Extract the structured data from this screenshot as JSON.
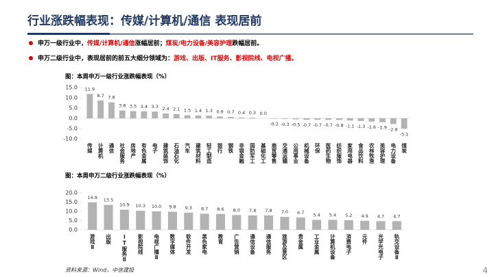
{
  "header": {
    "title": "行业涨跌幅表现：传媒/计算机/通信 表现居前"
  },
  "bullets": [
    [
      {
        "text": "申万一级行业中，",
        "color": "#000000"
      },
      {
        "text": "传媒/计算机/通信",
        "color": "#e00000"
      },
      {
        "text": "涨幅居前；",
        "color": "#000000"
      },
      {
        "text": "煤炭/电力设备/美容护理",
        "color": "#e00000"
      },
      {
        "text": "跌幅居前。",
        "color": "#000000"
      }
    ],
    [
      {
        "text": "申万二级行业中，表现居前的前五大细分领域为：",
        "color": "#000000"
      },
      {
        "text": "游戏、出版、IT服务、影视院线、电视广播。",
        "color": "#e00000"
      }
    ]
  ],
  "chart_data": [
    {
      "type": "bar",
      "title": "图：本周申万一级行业涨跌幅表现（%）",
      "color": "#b3b3b3",
      "categories": [
        "传媒",
        "计算机",
        "通信",
        "社会服务",
        "房地产",
        "有色金属",
        "电子",
        "建筑装饰",
        "石油石化",
        "汽车",
        "建筑材料",
        "轻工制造",
        "银行",
        "钢铁",
        "非银金融",
        "国防军工",
        "基础化工",
        "商贸零售",
        "交通运输",
        "公用事业",
        "机械设备",
        "环保",
        "医药生物",
        "纺织服饰",
        "家用电器",
        "食品饮料",
        "农林牧渔",
        "美容护理",
        "电力设备",
        "煤炭"
      ],
      "values": [
        11.9,
        8.7,
        7.8,
        3.8,
        3.5,
        3.4,
        3.3,
        2.4,
        2.1,
        1.5,
        1.4,
        1.3,
        0.9,
        0.7,
        0.4,
        0.3,
        0.0,
        -0.2,
        -0.3,
        -0.5,
        -0.7,
        -0.7,
        -0.7,
        -0.8,
        -1.1,
        -1.3,
        -1.6,
        -1.9,
        -2.8,
        -5.1
      ],
      "value_labels": [
        "11.9",
        "8.7",
        "7.8",
        "3.8",
        "3.5",
        "3.4",
        "3.3",
        "2.4",
        "2.1",
        "1.5",
        "1.4",
        "1.3",
        "0.9",
        "0.7",
        "0.4",
        "0.3",
        "0.0",
        "-0.2",
        "-0.3",
        "-0.5",
        "-0.7",
        "-0.7",
        "-0.7",
        "-0.8",
        "-1.1",
        "-1.3",
        "-1.6",
        "-1.9",
        "-2.8",
        "-5.1"
      ],
      "ylim": [
        -10,
        15
      ],
      "yticks": [
        {
          "value": 15,
          "label": "15.0"
        },
        {
          "value": 10,
          "label": "10.0"
        },
        {
          "value": 5,
          "label": "5.0"
        },
        {
          "value": 0,
          "label": "0.0"
        },
        {
          "value": -5,
          "label": "-5.0"
        },
        {
          "value": -10,
          "label": "-10.0"
        }
      ]
    },
    {
      "type": "bar",
      "title": "图：本周申万二级行业涨跌幅表现（%）",
      "color": "#b3b3b3",
      "categories": [
        "游戏Ⅱ",
        "出版",
        "IT服务Ⅱ",
        "影视院线",
        "电视广播Ⅱ",
        "数字媒体",
        "软件开发",
        "黑色家电",
        "教育",
        "广告营销",
        "通信设备",
        "通信服务",
        "旅游及景区",
        "贵金属",
        "工业金属",
        "计算机设备",
        "消费电子",
        "元件",
        "光学光电子",
        "轨交设备Ⅱ"
      ],
      "values": [
        14.9,
        13.5,
        10.9,
        10.3,
        10.0,
        9.8,
        9.3,
        8.7,
        8.6,
        8.0,
        7.8,
        7.8,
        7.0,
        6.7,
        5.4,
        5.4,
        5.2,
        4.9,
        4.7,
        4.7
      ],
      "value_labels": [
        "14.9",
        "13.5",
        "10.9",
        "10.3",
        "10.0",
        "9.8",
        "9.3",
        "8.7",
        "8.6",
        "8.0",
        "7.8",
        "7.8",
        "7.0",
        "6.7",
        "5.4",
        "5.4",
        "5.2",
        "4.9",
        "4.7",
        "4.7"
      ],
      "ylim": [
        0,
        20
      ],
      "yticks": [
        {
          "value": 0,
          "label": "0.0"
        },
        {
          "value": 5,
          "label": "5.0"
        },
        {
          "value": 10,
          "label": "10.0"
        },
        {
          "value": 15,
          "label": "15.0"
        },
        {
          "value": 20,
          "label": "20.0"
        }
      ]
    }
  ],
  "source": "资料来源：Wind，中信建投",
  "page_number": "4"
}
